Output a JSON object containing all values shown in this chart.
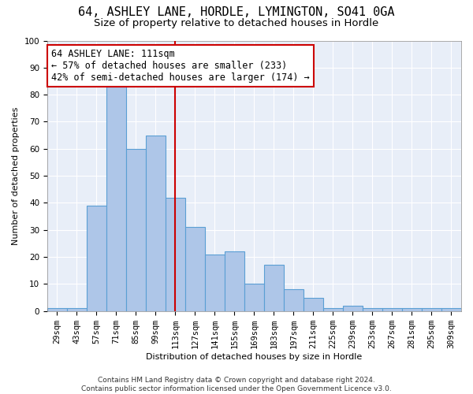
{
  "title": "64, ASHLEY LANE, HORDLE, LYMINGTON, SO41 0GA",
  "subtitle": "Size of property relative to detached houses in Hordle",
  "xlabel": "Distribution of detached houses by size in Hordle",
  "ylabel": "Number of detached properties",
  "categories": [
    "29sqm",
    "43sqm",
    "57sqm",
    "71sqm",
    "85sqm",
    "99sqm",
    "113sqm",
    "127sqm",
    "141sqm",
    "155sqm",
    "169sqm",
    "183sqm",
    "197sqm",
    "211sqm",
    "225sqm",
    "239sqm",
    "253sqm",
    "267sqm",
    "281sqm",
    "295sqm",
    "309sqm"
  ],
  "values": [
    1,
    1,
    39,
    83,
    60,
    65,
    42,
    31,
    21,
    22,
    10,
    17,
    8,
    5,
    1,
    2,
    1,
    1,
    1,
    1,
    1
  ],
  "bar_color": "#aec6e8",
  "bar_edge_color": "#5a9fd4",
  "reference_line_x": "113sqm",
  "reference_line_color": "#cc0000",
  "annotation_line1": "64 ASHLEY LANE: 111sqm",
  "annotation_line2": "← 57% of detached houses are smaller (233)",
  "annotation_line3": "42% of semi-detached houses are larger (174) →",
  "annotation_box_color": "#ffffff",
  "annotation_box_edge_color": "#cc0000",
  "ylim": [
    0,
    100
  ],
  "background_color": "#e8eef8",
  "footer_text": "Contains HM Land Registry data © Crown copyright and database right 2024.\nContains public sector information licensed under the Open Government Licence v3.0.",
  "title_fontsize": 11,
  "subtitle_fontsize": 9.5,
  "annotation_fontsize": 8.5,
  "tick_fontsize": 7.5,
  "ylabel_fontsize": 8,
  "xlabel_fontsize": 8,
  "footer_fontsize": 6.5
}
